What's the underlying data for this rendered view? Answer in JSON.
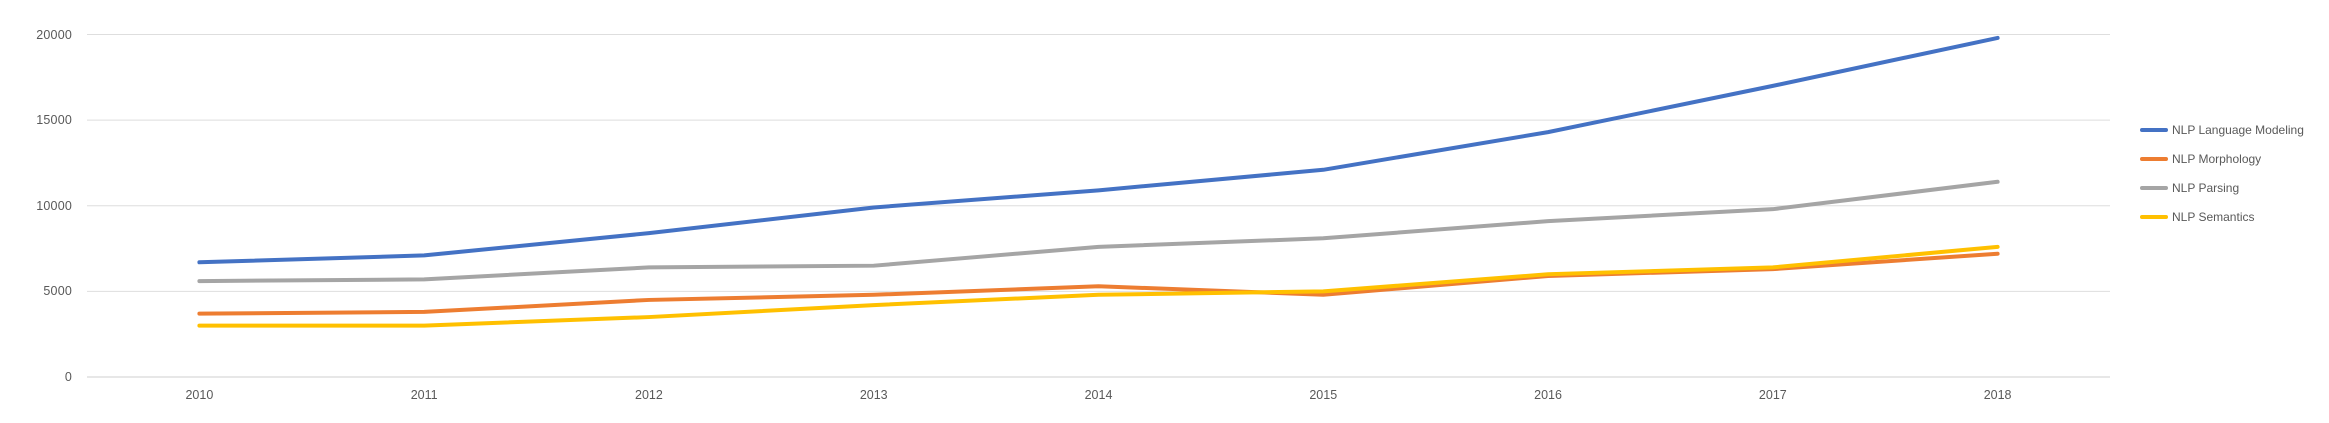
{
  "chart_data": {
    "type": "line",
    "title": "",
    "xlabel": "",
    "ylabel": "",
    "categories": [
      "2010",
      "2011",
      "2012",
      "2013",
      "2014",
      "2015",
      "2016",
      "2017",
      "2018"
    ],
    "series": [
      {
        "name": "NLP Language Modeling",
        "color": "#4472C4",
        "values": [
          6700,
          7100,
          8400,
          9900,
          10900,
          12100,
          14300,
          17000,
          19800
        ]
      },
      {
        "name": "NLP Morphology",
        "color": "#ED7D31",
        "values": [
          3700,
          3800,
          4500,
          4800,
          5300,
          4800,
          5900,
          6300,
          7200
        ]
      },
      {
        "name": "NLP Parsing",
        "color": "#A5A5A5",
        "values": [
          5600,
          5700,
          6400,
          6500,
          7600,
          8100,
          9100,
          9800,
          11400
        ]
      },
      {
        "name": "NLP Semantics",
        "color": "#FFC000",
        "values": [
          3000,
          3000,
          3500,
          4200,
          4800,
          5000,
          6000,
          6400,
          7600
        ]
      }
    ],
    "yticks": [
      0,
      5000,
      10000,
      15000,
      20000
    ],
    "ytick_labels": [
      "0",
      "5000",
      "10000",
      "15000",
      "20000"
    ],
    "ylim": [
      0,
      20000
    ],
    "grid": true,
    "legend_position": "right"
  },
  "colors": {
    "axis_text": "#595959",
    "legend_text": "#595959",
    "gridline": "#DEDEDE",
    "axis_line": "#CFCFCF",
    "background": "#FFFFFF"
  }
}
